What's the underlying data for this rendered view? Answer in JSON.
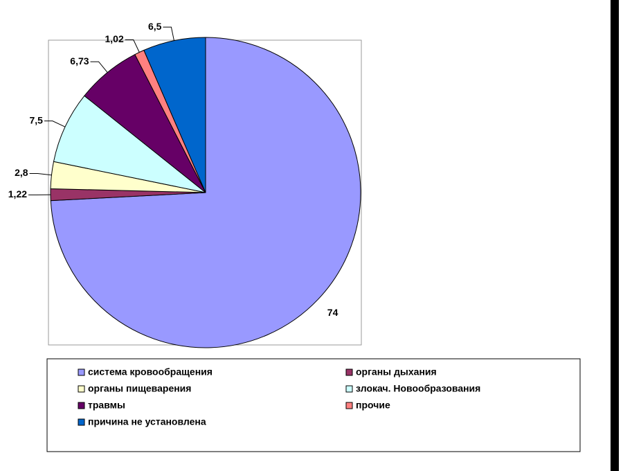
{
  "chart_data": {
    "type": "pie",
    "categories": [
      "система кровообращения",
      "органы дыхания",
      "органы пищеварения",
      "злокач. Новообразования",
      "травмы",
      "прочие",
      "причина не установлена"
    ],
    "values": [
      74,
      1.22,
      2.8,
      7.5,
      6.73,
      1.02,
      6.5
    ],
    "value_labels": [
      "74",
      "1,22",
      "2,8",
      "7,5",
      "6,73",
      "1,02",
      "6,5"
    ],
    "colors": [
      "#9999ff",
      "#993366",
      "#ffffcc",
      "#ccffff",
      "#660066",
      "#ff8080",
      "#0066cc"
    ],
    "legend": "bottom"
  }
}
